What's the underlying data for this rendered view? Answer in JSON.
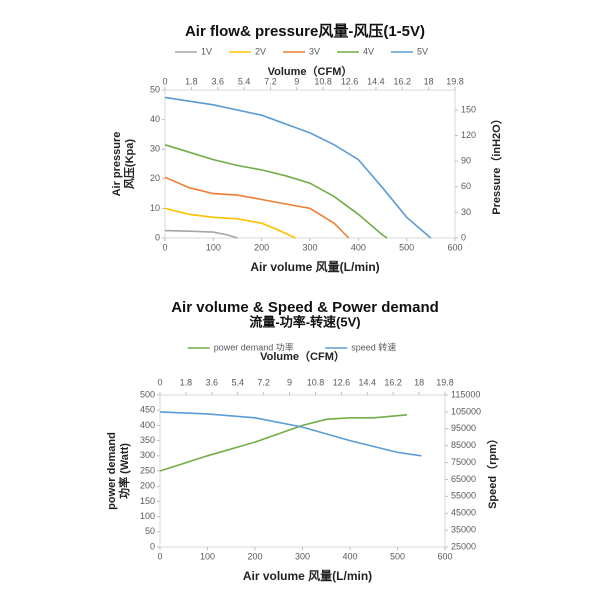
{
  "chart_data": [
    {
      "type": "line",
      "title": "Air flow& pressure风量-风压(1-5V)",
      "xlabel": "Air volume 风量(L/min)",
      "ylabel": [
        "Air pressure",
        "风压(Kpa)"
      ],
      "y2label": "Pressure（inH2O）",
      "x2label": "Volume（CFM）",
      "xlim": [
        0,
        600
      ],
      "xticks": [
        0,
        100,
        200,
        300,
        400,
        500,
        600
      ],
      "x2lim": [
        0,
        19.8
      ],
      "x2ticks": [
        0,
        1.8,
        3.6,
        5.4,
        7.2,
        9,
        10.8,
        12.6,
        14.4,
        16.2,
        18,
        19.8
      ],
      "ylim": [
        0,
        50
      ],
      "yticks": [
        0,
        10,
        20,
        30,
        40,
        50
      ],
      "y2lim": [
        0,
        173.4
      ],
      "y2ticks": [
        0,
        30,
        60,
        90,
        120,
        150
      ],
      "series": [
        {
          "name": "1V",
          "color": "#a6a6a6",
          "x": [
            0,
            50,
            100,
            130,
            150
          ],
          "values": [
            2.5,
            2.3,
            2,
            1,
            0
          ]
        },
        {
          "name": "2V",
          "color": "#ffc000",
          "x": [
            0,
            50,
            100,
            150,
            200,
            230,
            270
          ],
          "values": [
            10,
            8,
            7,
            6.5,
            5,
            3,
            0
          ]
        },
        {
          "name": "3V",
          "color": "#ed7d31",
          "x": [
            0,
            50,
            100,
            150,
            200,
            250,
            300,
            350,
            380
          ],
          "values": [
            20.5,
            17,
            15,
            14.5,
            13,
            11.5,
            10,
            5,
            0
          ]
        },
        {
          "name": "4V",
          "color": "#70ad47",
          "x": [
            0,
            50,
            100,
            150,
            200,
            250,
            300,
            350,
            400,
            450,
            460
          ],
          "values": [
            31.5,
            29,
            26.5,
            24.5,
            23,
            21,
            18.5,
            14,
            8,
            1,
            0
          ]
        },
        {
          "name": "5V",
          "color": "#5b9bd5",
          "x": [
            0,
            100,
            200,
            300,
            350,
            400,
            450,
            500,
            550
          ],
          "values": [
            47.5,
            45,
            41.5,
            35.5,
            31.5,
            26.5,
            17,
            7,
            0
          ]
        }
      ]
    },
    {
      "type": "line",
      "title": "Air volume  &  Speed  &  Power demand",
      "subtitle": "流量-功率-转速(5V)",
      "xlabel": "Air volume 风量(L/min)",
      "ylabel": [
        "power demand",
        "功率 (Watt)"
      ],
      "y2label": "Speed（rpm）",
      "x2label": "Volume（CFM）",
      "xlim": [
        0,
        600
      ],
      "xticks": [
        0,
        100,
        200,
        300,
        400,
        500,
        600
      ],
      "x2lim": [
        0,
        19.8
      ],
      "x2ticks": [
        0,
        1.8,
        3.6,
        5.4,
        7.2,
        9,
        10.8,
        12.6,
        14.4,
        16.2,
        18,
        19.8
      ],
      "ylim": [
        0,
        500
      ],
      "yticks": [
        0,
        50,
        100,
        150,
        200,
        250,
        300,
        350,
        400,
        450,
        500
      ],
      "y2lim": [
        25000,
        115000
      ],
      "y2ticks": [
        25000,
        35000,
        45000,
        55000,
        65000,
        75000,
        85000,
        95000,
        105000,
        115000
      ],
      "series": [
        {
          "name": "power demand 功率",
          "color": "#70ad47",
          "x": [
            0,
            100,
            200,
            300,
            350,
            400,
            450,
            520
          ],
          "values": [
            250,
            300,
            345,
            400,
            420,
            425,
            425,
            435
          ]
        },
        {
          "name": "speed 转速",
          "color": "#5b9bd5",
          "axis": "y2",
          "x": [
            0,
            100,
            200,
            300,
            400,
            500,
            550
          ],
          "values": [
            105000,
            103800,
            101500,
            96000,
            88000,
            81000,
            79000
          ]
        }
      ]
    }
  ]
}
